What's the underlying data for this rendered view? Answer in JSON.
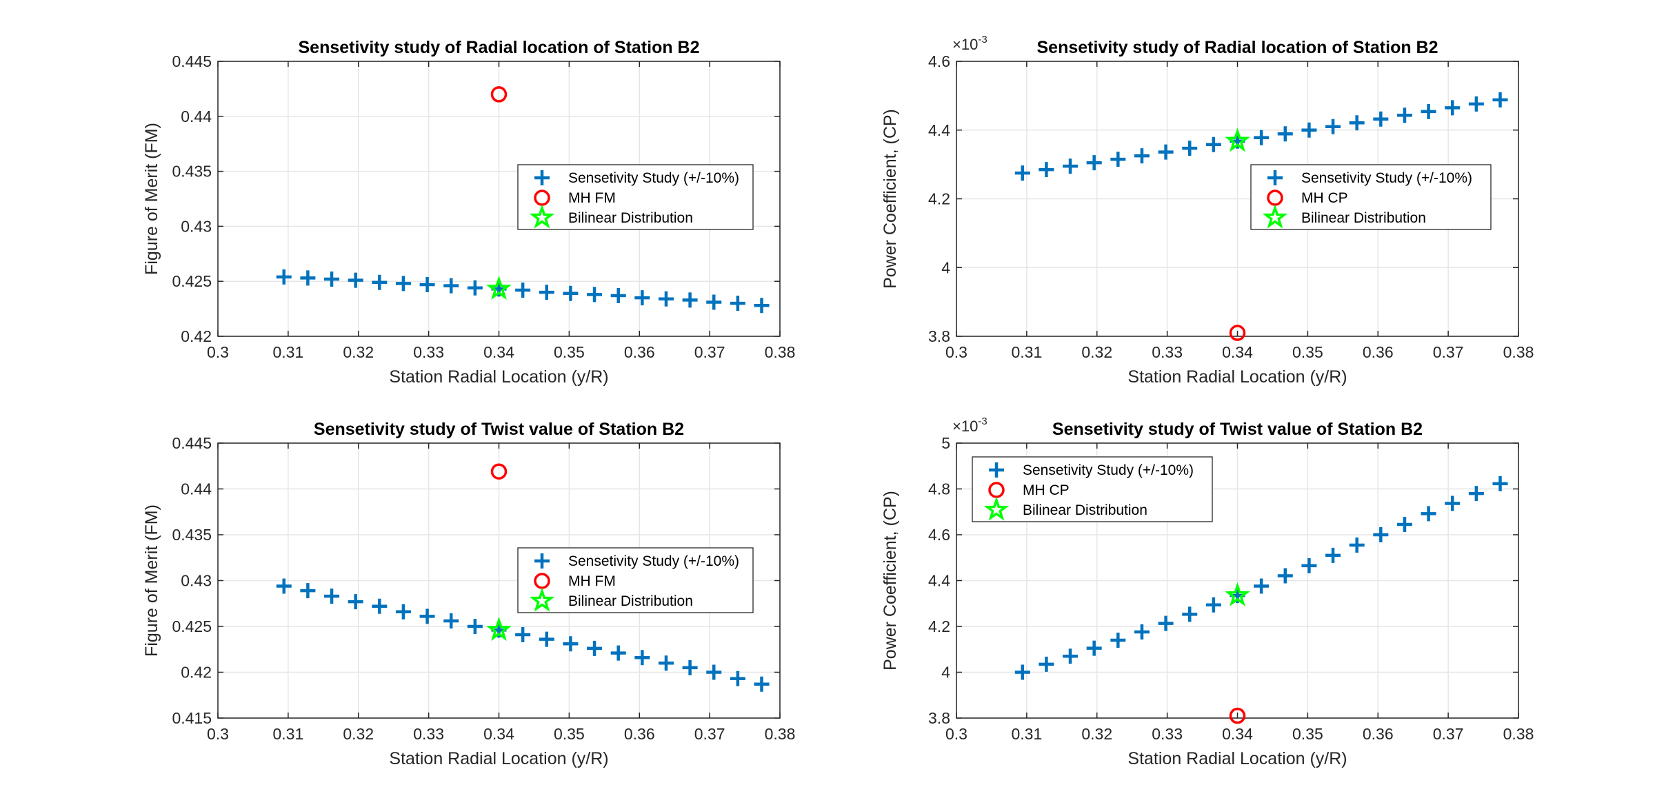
{
  "chart_data": [
    {
      "type": "scatter",
      "title": "Sensetivity study of Radial location of Station B2",
      "xlabel": "Station Radial Location (y/R)",
      "ylabel": "Figure of Merit (FM)",
      "xlim": [
        0.3,
        0.38
      ],
      "ylim": [
        0.42,
        0.445
      ],
      "xticks": [
        "0.3",
        "0.31",
        "0.32",
        "0.33",
        "0.34",
        "0.35",
        "0.36",
        "0.37",
        "0.38"
      ],
      "yticks": [
        "0.42",
        "0.425",
        "0.43",
        "0.435",
        "0.44",
        "0.445"
      ],
      "grid": true,
      "legend_position": "middle-right",
      "series": [
        {
          "name": "Sensetivity Study (+/-10%)",
          "marker": "plus",
          "color": "#0072BD",
          "x": [
            0.3094,
            0.3128,
            0.3162,
            0.3196,
            0.323,
            0.3264,
            0.3298,
            0.3332,
            0.3366,
            0.34,
            0.3434,
            0.3468,
            0.3502,
            0.3536,
            0.357,
            0.3604,
            0.3638,
            0.3672,
            0.3706,
            0.374,
            0.3774
          ],
          "y": [
            0.4254,
            0.4253,
            0.4252,
            0.4251,
            0.4249,
            0.4248,
            0.4247,
            0.4246,
            0.4244,
            0.4243,
            0.4242,
            0.424,
            0.4239,
            0.4238,
            0.4237,
            0.4235,
            0.4234,
            0.4233,
            0.4231,
            0.423,
            0.4228
          ]
        },
        {
          "name": "MH FM",
          "marker": "circle",
          "color": "#FF0000",
          "x": [
            0.34
          ],
          "y": [
            0.442
          ]
        },
        {
          "name": "Bilinear Distribution",
          "marker": "star",
          "color": "#00FF00",
          "x": [
            0.34
          ],
          "y": [
            0.4243
          ]
        }
      ]
    },
    {
      "type": "scatter",
      "title": "Sensetivity study of Radial location of Station B2",
      "xlabel": "Station Radial Location (y/R)",
      "ylabel": "Power Coefficient, (CP)",
      "exponent_base": "×10",
      "exponent_power": "-3",
      "xlim": [
        0.3,
        0.38
      ],
      "ylim": [
        3.8,
        4.6
      ],
      "xticks": [
        "0.3",
        "0.31",
        "0.32",
        "0.33",
        "0.34",
        "0.35",
        "0.36",
        "0.37",
        "0.38"
      ],
      "yticks": [
        "3.8",
        "4",
        "4.2",
        "4.4",
        "4.6"
      ],
      "grid": true,
      "legend_position": "middle-right",
      "series": [
        {
          "name": "Sensetivity Study (+/-10%)",
          "marker": "plus",
          "color": "#0072BD",
          "x": [
            0.3094,
            0.3128,
            0.3162,
            0.3196,
            0.323,
            0.3264,
            0.3298,
            0.3332,
            0.3366,
            0.34,
            0.3434,
            0.3468,
            0.3502,
            0.3536,
            0.357,
            0.3604,
            0.3638,
            0.3672,
            0.3706,
            0.374,
            0.3774
          ],
          "y": [
            4.275,
            4.285,
            4.295,
            4.305,
            4.315,
            4.325,
            4.336,
            4.347,
            4.358,
            4.368,
            4.378,
            4.389,
            4.4,
            4.41,
            4.421,
            4.432,
            4.443,
            4.454,
            4.465,
            4.476,
            4.488
          ]
        },
        {
          "name": "MH CP",
          "marker": "circle",
          "color": "#FF0000",
          "x": [
            0.34
          ],
          "y": [
            3.81
          ]
        },
        {
          "name": "Bilinear Distribution",
          "marker": "star",
          "color": "#00FF00",
          "x": [
            0.34
          ],
          "y": [
            4.368
          ]
        }
      ]
    },
    {
      "type": "scatter",
      "title": "Sensetivity study of Twist value of Station B2",
      "xlabel": "Station Radial Location (y/R)",
      "ylabel": "Figure of Merit (FM)",
      "xlim": [
        0.3,
        0.38
      ],
      "ylim": [
        0.415,
        0.445
      ],
      "xticks": [
        "0.3",
        "0.31",
        "0.32",
        "0.33",
        "0.34",
        "0.35",
        "0.36",
        "0.37",
        "0.38"
      ],
      "yticks": [
        "0.415",
        "0.42",
        "0.425",
        "0.43",
        "0.435",
        "0.44",
        "0.445"
      ],
      "grid": true,
      "legend_position": "middle-right",
      "series": [
        {
          "name": "Sensetivity Study (+/-10%)",
          "marker": "plus",
          "color": "#0072BD",
          "x": [
            0.3094,
            0.3128,
            0.3162,
            0.3196,
            0.323,
            0.3264,
            0.3298,
            0.3332,
            0.3366,
            0.34,
            0.3434,
            0.3468,
            0.3502,
            0.3536,
            0.357,
            0.3604,
            0.3638,
            0.3672,
            0.3706,
            0.374,
            0.3774
          ],
          "y": [
            0.4294,
            0.4289,
            0.4283,
            0.4277,
            0.4272,
            0.4266,
            0.4261,
            0.4256,
            0.425,
            0.4246,
            0.4241,
            0.4236,
            0.4231,
            0.4226,
            0.4221,
            0.4216,
            0.421,
            0.4205,
            0.42,
            0.4193,
            0.4187
          ]
        },
        {
          "name": "MH FM",
          "marker": "circle",
          "color": "#FF0000",
          "x": [
            0.34
          ],
          "y": [
            0.4419
          ]
        },
        {
          "name": "Bilinear Distribution",
          "marker": "star",
          "color": "#00FF00",
          "x": [
            0.34
          ],
          "y": [
            0.4246
          ]
        }
      ]
    },
    {
      "type": "scatter",
      "title": "Sensetivity study of Twist value of Station B2",
      "xlabel": "Station Radial Location (y/R)",
      "ylabel": "Power Coefficient, (CP)",
      "exponent_base": "×10",
      "exponent_power": "-3",
      "xlim": [
        0.3,
        0.38
      ],
      "ylim": [
        3.8,
        5.0
      ],
      "xticks": [
        "0.3",
        "0.31",
        "0.32",
        "0.33",
        "0.34",
        "0.35",
        "0.36",
        "0.37",
        "0.38"
      ],
      "yticks": [
        "3.8",
        "4",
        "4.2",
        "4.4",
        "4.6",
        "4.8",
        "5"
      ],
      "grid": true,
      "legend_position": "top-left",
      "series": [
        {
          "name": "Sensetivity Study (+/-10%)",
          "marker": "plus",
          "color": "#0072BD",
          "x": [
            0.3094,
            0.3128,
            0.3162,
            0.3196,
            0.323,
            0.3264,
            0.3298,
            0.3332,
            0.3366,
            0.34,
            0.3434,
            0.3468,
            0.3502,
            0.3536,
            0.357,
            0.3604,
            0.3638,
            0.3672,
            0.3706,
            0.374,
            0.3774
          ],
          "y": [
            4.0,
            4.035,
            4.07,
            4.105,
            4.14,
            4.176,
            4.213,
            4.253,
            4.294,
            4.335,
            4.376,
            4.421,
            4.465,
            4.51,
            4.555,
            4.6,
            4.645,
            4.692,
            4.737,
            4.78,
            4.823
          ]
        },
        {
          "name": "MH CP",
          "marker": "circle",
          "color": "#FF0000",
          "x": [
            0.34
          ],
          "y": [
            3.81
          ]
        },
        {
          "name": "Bilinear Distribution",
          "marker": "star",
          "color": "#00FF00",
          "x": [
            0.34
          ],
          "y": [
            4.335
          ]
        }
      ]
    }
  ]
}
